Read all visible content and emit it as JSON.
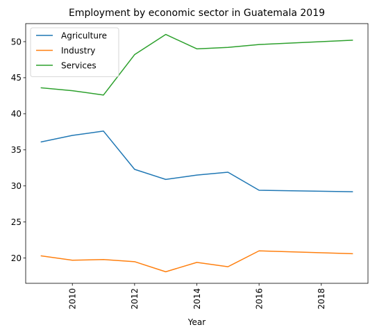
{
  "chart_data": {
    "type": "line",
    "title": "Employment by economic sector in Guatemala 2019",
    "xlabel": "Year",
    "ylabel": "",
    "x": [
      2009,
      2010,
      2011,
      2012,
      2013,
      2014,
      2015,
      2016,
      2019
    ],
    "xlim": [
      2008.5,
      2019.5
    ],
    "ylim": [
      16.5,
      52.5
    ],
    "xticks": [
      2010,
      2012,
      2014,
      2016,
      2018
    ],
    "yticks": [
      20,
      25,
      30,
      35,
      40,
      45,
      50
    ],
    "xtick_rotation": "vertical",
    "grid": false,
    "legend": "upper-left",
    "series": [
      {
        "name": "Agriculture",
        "color": "#1f77b4",
        "values": [
          36.1,
          37.0,
          37.6,
          32.3,
          30.9,
          31.5,
          31.9,
          29.4,
          29.2
        ]
      },
      {
        "name": "Industry",
        "color": "#ff7f0e",
        "values": [
          20.3,
          19.7,
          19.8,
          19.5,
          18.1,
          19.4,
          18.8,
          21.0,
          20.6
        ]
      },
      {
        "name": "Services",
        "color": "#2ca02c",
        "values": [
          43.6,
          43.2,
          42.6,
          48.2,
          51.0,
          49.0,
          49.2,
          49.6,
          50.2
        ]
      }
    ]
  }
}
